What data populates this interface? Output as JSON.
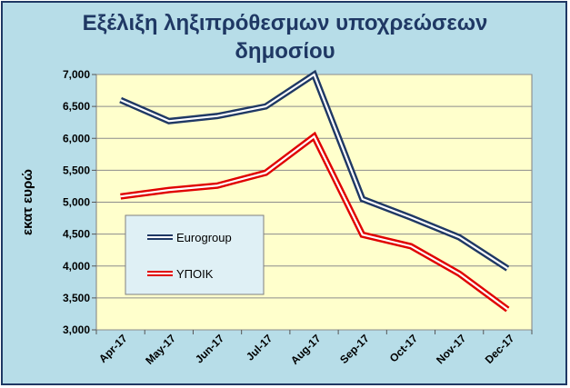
{
  "chart_data": {
    "type": "line",
    "title_line1": "Εξέλιξη ληξιπρόθεσμων υποχρεώσεων",
    "title_line2": "δημοσίου",
    "xlabel": "",
    "ylabel": "εκατ ευρώ",
    "ylim": [
      3000,
      7000
    ],
    "yticks": [
      "3,000",
      "3,500",
      "4,000",
      "4,500",
      "5,000",
      "5,500",
      "6,000",
      "6,500",
      "7,000"
    ],
    "categories": [
      "Apr-17",
      "May-17",
      "Jun-17",
      "Jul-17",
      "Aug-17",
      "Sep-17",
      "Oct-17",
      "Nov-17",
      "Dec-17"
    ],
    "series": [
      {
        "name": "Eurogroup",
        "color": "#1f3864",
        "values": [
          6600,
          6270,
          6350,
          6500,
          7000,
          5050,
          4760,
          4450,
          3960
        ]
      },
      {
        "name": "ΥΠΟΙΚ",
        "color": "#e00000",
        "values": [
          5090,
          5190,
          5260,
          5460,
          6030,
          4490,
          4310,
          3880,
          3320
        ]
      }
    ],
    "grid": true,
    "legend_position": "center-left",
    "colors": {
      "plot_background": "#ffffcc",
      "frame_background": "#b7dde8",
      "title": "#1f3864"
    }
  }
}
